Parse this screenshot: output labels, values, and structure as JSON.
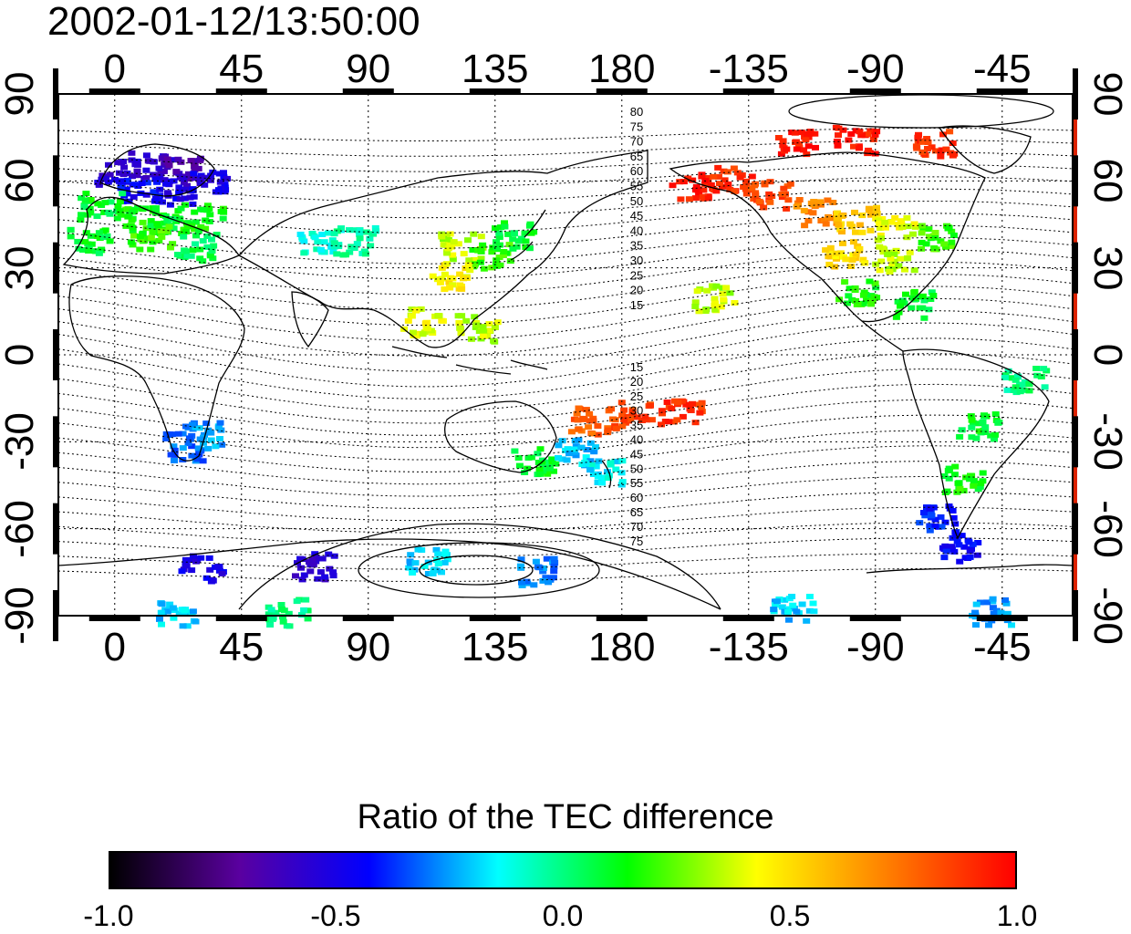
{
  "timestamp": "2002-01-12/13:50:00",
  "top_ticks": [
    "0",
    "45",
    "90",
    "135",
    "180",
    "-135",
    "-90",
    "-45"
  ],
  "bottom_ticks": [
    "0",
    "45",
    "90",
    "135",
    "180",
    "-135",
    "-90",
    "-45"
  ],
  "left_ticks": [
    "90",
    "60",
    "30",
    "0",
    "-30",
    "-60",
    "-90"
  ],
  "right_ticks": [
    "90",
    "60",
    "30",
    "0",
    "-30",
    "-60",
    "-90"
  ],
  "contour_labels_north": [
    "80",
    "75",
    "70",
    "65",
    "60",
    "55",
    "50",
    "45",
    "40",
    "35",
    "30",
    "25",
    "20",
    "15"
  ],
  "contour_labels_south": [
    "15",
    "20",
    "25",
    "30",
    "35",
    "40",
    "45",
    "50",
    "55",
    "60",
    "65",
    "70",
    "75"
  ],
  "colorbar": {
    "title": "Ratio of the TEC difference",
    "tick_labels": [
      "-1.0",
      "-0.5",
      "0.0",
      "0.5",
      "1.0"
    ],
    "min": -1.0,
    "max": 1.0,
    "colors": [
      "#000000",
      "#5a00a0",
      "#0000ff",
      "#00ffff",
      "#00ff00",
      "#ffff00",
      "#ff8000",
      "#ff0000"
    ]
  },
  "map_data": {
    "projection": "equirectangular",
    "lon_range": [
      -20,
      340
    ],
    "lat_range": [
      -90,
      90
    ],
    "lon_gridlines": [
      0,
      45,
      90,
      135,
      180,
      225,
      270,
      315
    ],
    "lat_gridlines": [
      -90,
      -60,
      -30,
      0,
      30,
      60,
      90
    ],
    "patches": [
      {
        "lon": 0,
        "lat": 64,
        "value": -0.55
      },
      {
        "lon": 12,
        "lat": 66,
        "value": -0.6
      },
      {
        "lon": 24,
        "lat": 64,
        "value": -0.65
      },
      {
        "lon": 8,
        "lat": 58,
        "value": -0.45
      },
      {
        "lon": 20,
        "lat": 57,
        "value": -0.5
      },
      {
        "lon": 32,
        "lat": 60,
        "value": -0.5
      },
      {
        "lon": -6,
        "lat": 52,
        "value": 0.1
      },
      {
        "lon": 6,
        "lat": 48,
        "value": 0.15
      },
      {
        "lon": 18,
        "lat": 47,
        "value": 0.1
      },
      {
        "lon": 30,
        "lat": 48,
        "value": 0.15
      },
      {
        "lon": 12,
        "lat": 42,
        "value": 0.2
      },
      {
        "lon": -10,
        "lat": 40,
        "value": 0.1
      },
      {
        "lon": 28,
        "lat": 38,
        "value": 0.05
      },
      {
        "lon": 72,
        "lat": 40,
        "value": -0.1
      },
      {
        "lon": 84,
        "lat": 40,
        "value": -0.05
      },
      {
        "lon": 122,
        "lat": 38,
        "value": 0.35
      },
      {
        "lon": 132,
        "lat": 35,
        "value": 0.2
      },
      {
        "lon": 140,
        "lat": 42,
        "value": 0.1
      },
      {
        "lon": 118,
        "lat": 28,
        "value": 0.45
      },
      {
        "lon": 108,
        "lat": 12,
        "value": 0.4
      },
      {
        "lon": 128,
        "lat": 10,
        "value": 0.35
      },
      {
        "lon": 30,
        "lat": -27,
        "value": -0.25
      },
      {
        "lon": 24,
        "lat": -31,
        "value": -0.3
      },
      {
        "lon": 148,
        "lat": -36,
        "value": 0.1
      },
      {
        "lon": 162,
        "lat": -33,
        "value": -0.2
      },
      {
        "lon": 172,
        "lat": -40,
        "value": -0.15
      },
      {
        "lon": 168,
        "lat": -22,
        "value": 0.8
      },
      {
        "lon": 182,
        "lat": -20,
        "value": 0.85
      },
      {
        "lon": 200,
        "lat": -19,
        "value": 0.9
      },
      {
        "lon": 212,
        "lat": 20,
        "value": 0.35
      },
      {
        "lon": 204,
        "lat": 59,
        "value": 0.95
      },
      {
        "lon": 218,
        "lat": 61,
        "value": 0.9
      },
      {
        "lon": 232,
        "lat": 56,
        "value": 0.85
      },
      {
        "lon": 248,
        "lat": 50,
        "value": 0.7
      },
      {
        "lon": 262,
        "lat": 47,
        "value": 0.55
      },
      {
        "lon": 276,
        "lat": 44,
        "value": 0.4
      },
      {
        "lon": 290,
        "lat": 42,
        "value": 0.2
      },
      {
        "lon": 258,
        "lat": 36,
        "value": 0.5
      },
      {
        "lon": 276,
        "lat": 34,
        "value": 0.35
      },
      {
        "lon": 262,
        "lat": 22,
        "value": 0.15
      },
      {
        "lon": 282,
        "lat": 18,
        "value": 0.1
      },
      {
        "lon": 240,
        "lat": 74,
        "value": 0.95
      },
      {
        "lon": 262,
        "lat": 75,
        "value": 0.95
      },
      {
        "lon": 290,
        "lat": 74,
        "value": 0.9
      },
      {
        "lon": 322,
        "lat": -8,
        "value": 0.0
      },
      {
        "lon": 306,
        "lat": -24,
        "value": 0.1
      },
      {
        "lon": 300,
        "lat": -42,
        "value": 0.15
      },
      {
        "lon": 290,
        "lat": -56,
        "value": -0.4
      },
      {
        "lon": 300,
        "lat": -66,
        "value": -0.45
      },
      {
        "lon": 30,
        "lat": -73,
        "value": -0.5
      },
      {
        "lon": 70,
        "lat": -72,
        "value": -0.55
      },
      {
        "lon": 110,
        "lat": -70,
        "value": -0.2
      },
      {
        "lon": 150,
        "lat": -74,
        "value": -0.3
      },
      {
        "lon": 60,
        "lat": -88,
        "value": 0.0
      },
      {
        "lon": 20,
        "lat": -88,
        "value": -0.2
      },
      {
        "lon": 240,
        "lat": -87,
        "value": -0.2
      },
      {
        "lon": 310,
        "lat": -88,
        "value": -0.25
      }
    ],
    "right_strip_color": "#dd2200"
  }
}
